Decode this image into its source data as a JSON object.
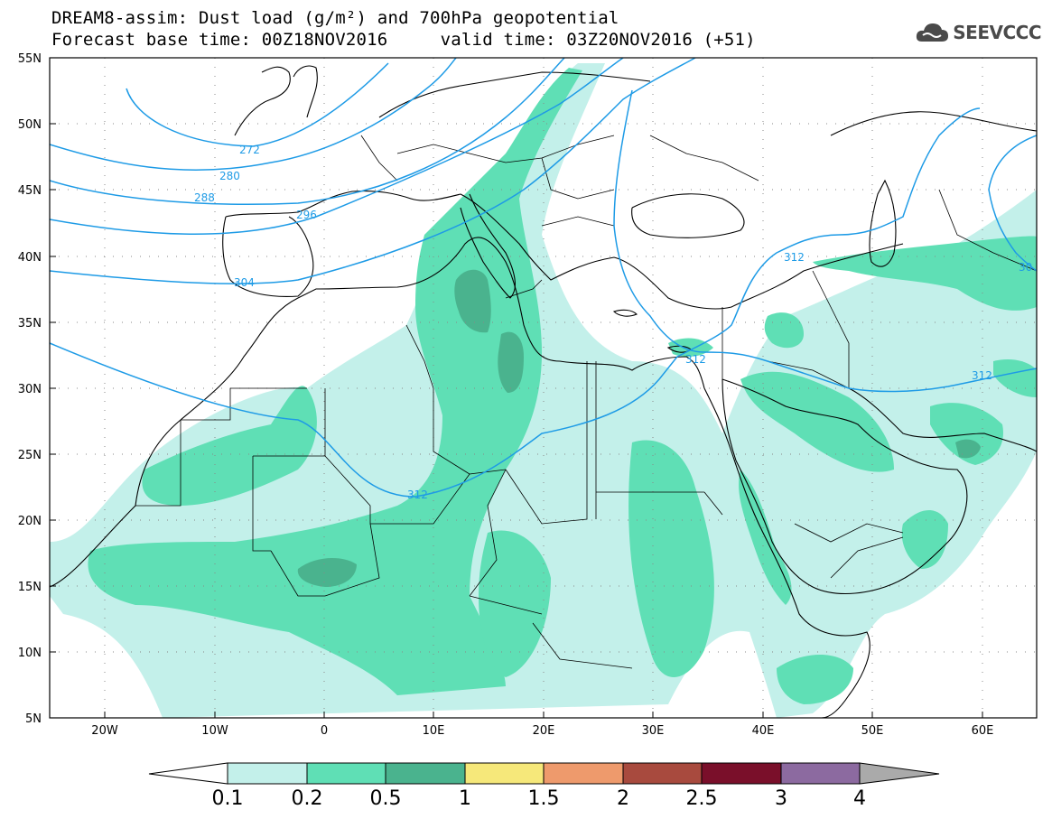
{
  "title_line1": "DREAM8-assim: Dust load (g/m²) and 700hPa geopotential",
  "title_line2": "Forecast base time: 00Z18NOV2016     valid time: 03Z20NOV2016 (+51)",
  "logo_text": "SEEVCCC",
  "lat_labels": [
    "55N",
    "50N",
    "45N",
    "40N",
    "35N",
    "30N",
    "25N",
    "20N",
    "15N",
    "10N",
    "5N"
  ],
  "lon_labels": [
    "20W",
    "10W",
    "0",
    "10E",
    "20E",
    "30E",
    "40E",
    "50E",
    "60E"
  ],
  "contour_labels": [
    "272",
    "280",
    "288",
    "296",
    "304",
    "312",
    "312",
    "312",
    "312",
    "30"
  ],
  "colorbar": {
    "ticks": [
      "0.1",
      "0.2",
      "0.5",
      "1",
      "1.5",
      "2",
      "2.5",
      "3",
      "4"
    ],
    "colors": [
      "#ffffff",
      "#c3f0ea",
      "#5fdfb5",
      "#4ab38e",
      "#f6e87a",
      "#ee9a6c",
      "#a84a3e",
      "#7a0f2a",
      "#8c6aa0",
      "#aaaaaa"
    ]
  },
  "dust_colors": {
    "light": "#c3f0ea",
    "medium": "#5fdfb5",
    "dark": "#4ab38e"
  },
  "contour_color": "#1e9be6"
}
